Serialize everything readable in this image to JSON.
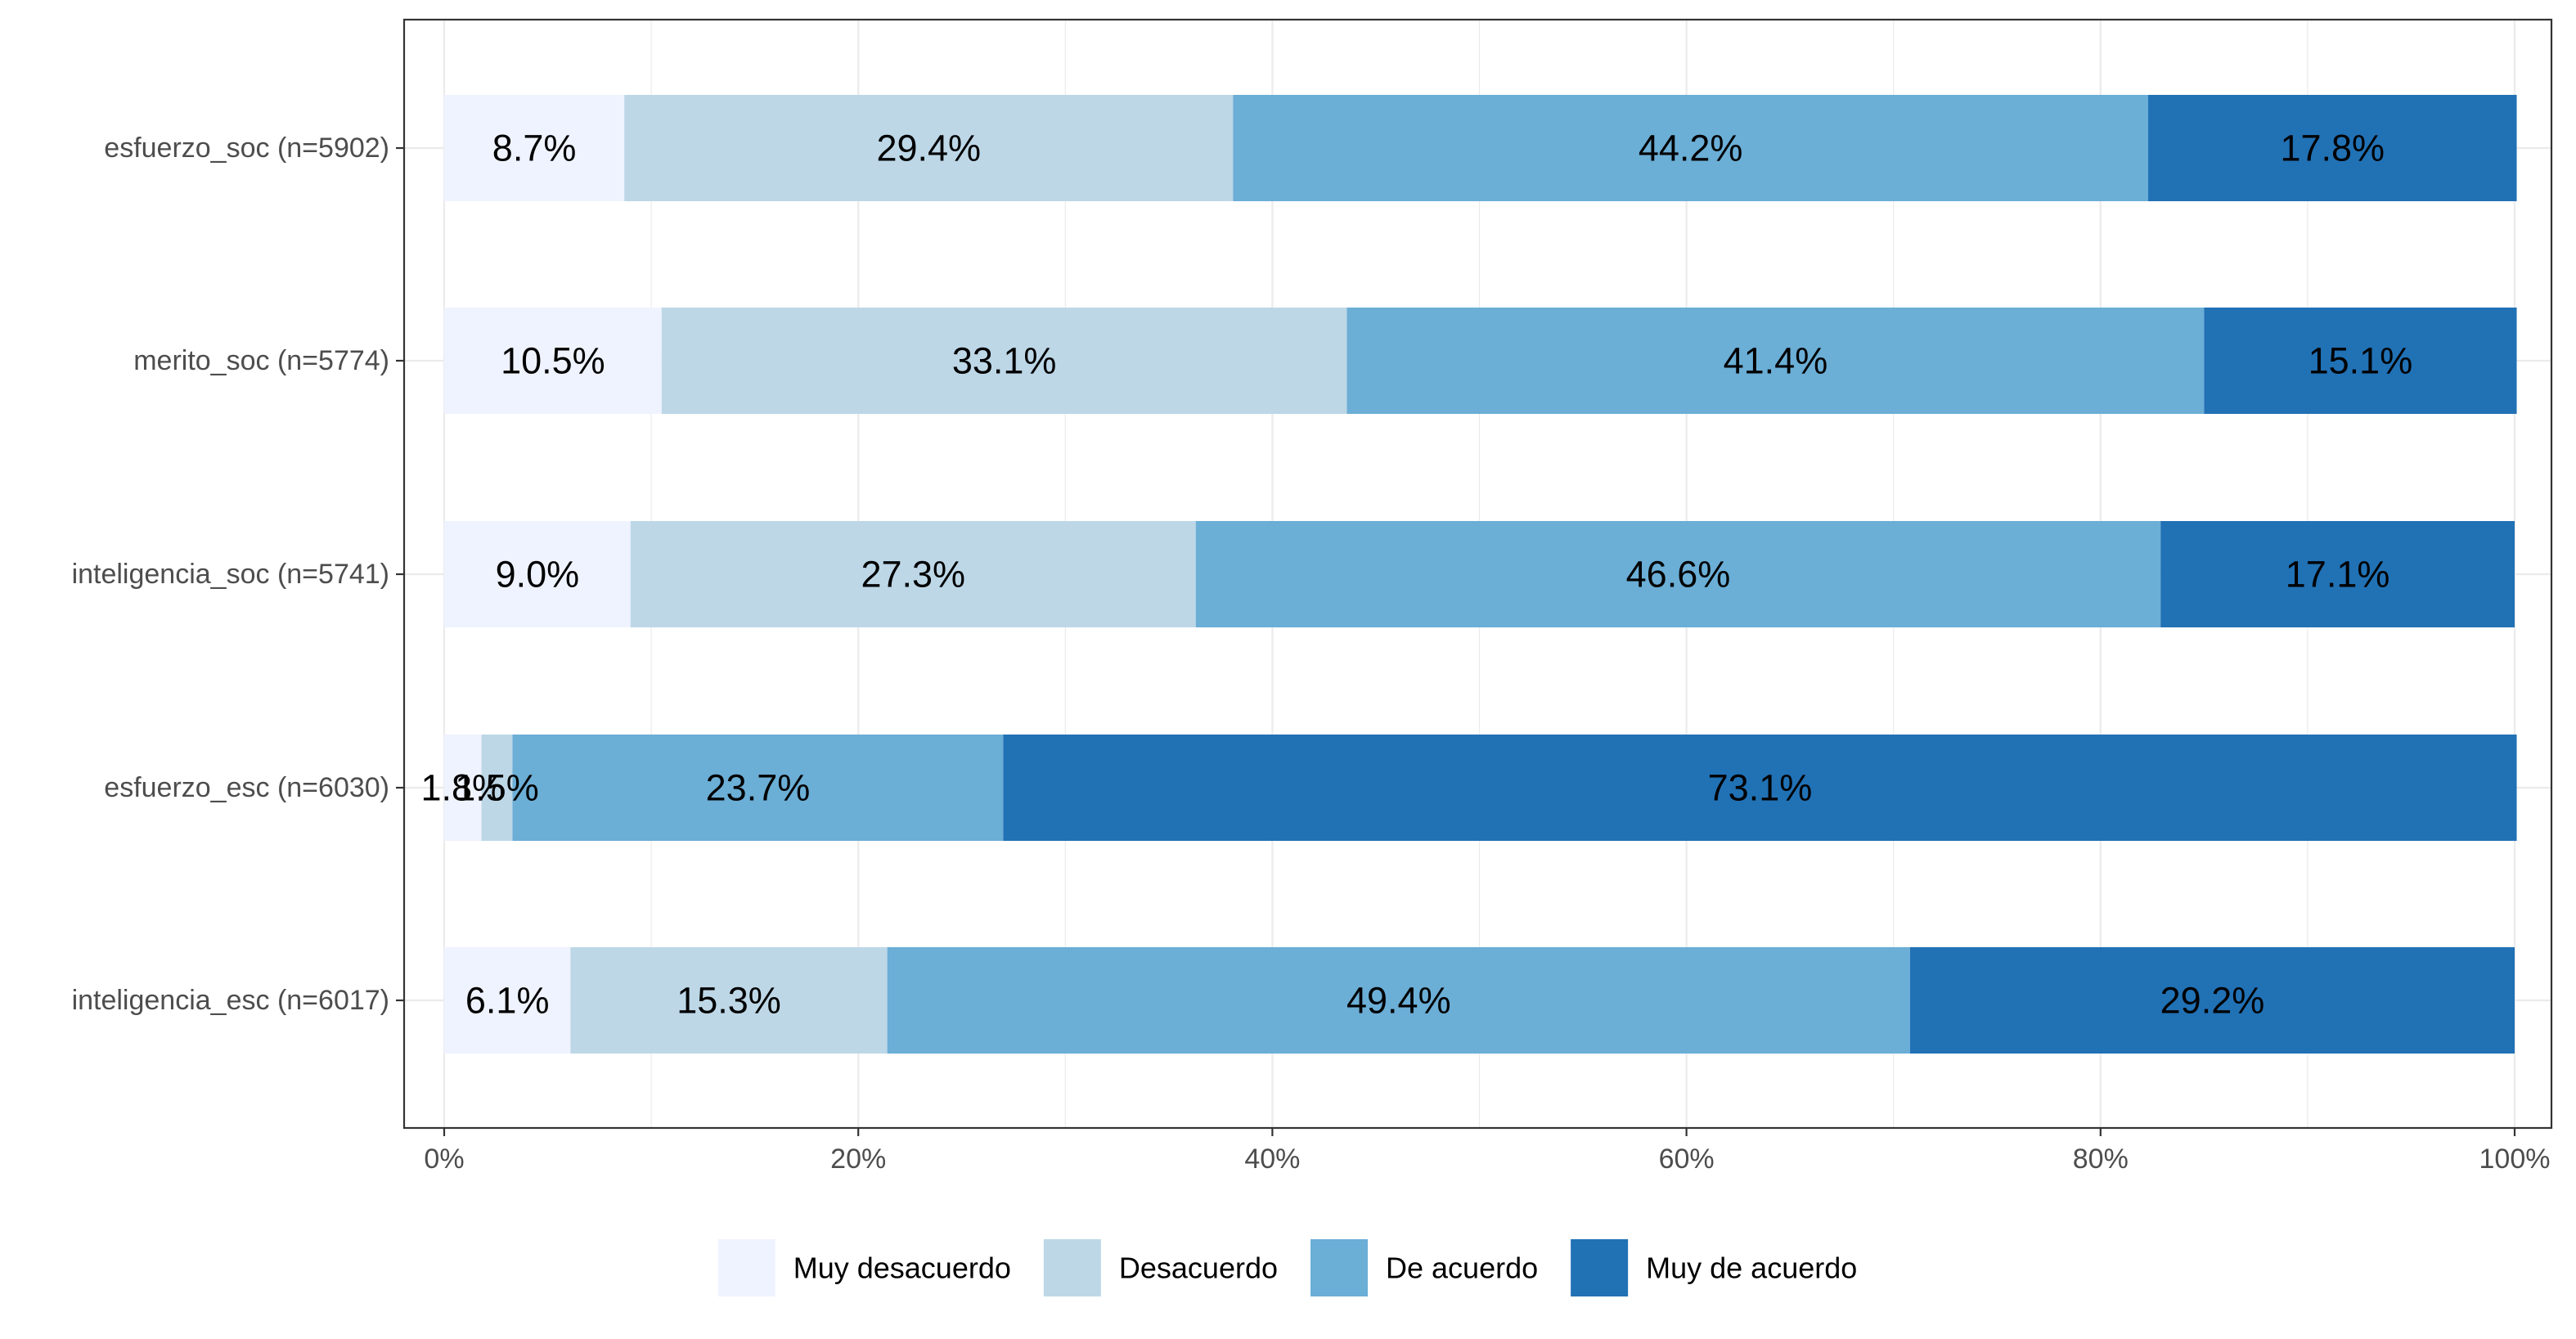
{
  "chart_data": {
    "type": "bar",
    "orientation": "horizontal",
    "stacked": true,
    "categories": [
      "esfuerzo_soc (n=5902)",
      "merito_soc (n=5774)",
      "inteligencia_soc (n=5741)",
      "esfuerzo_esc (n=6030)",
      "inteligencia_esc (n=6017)"
    ],
    "series": [
      {
        "name": "Muy desacuerdo",
        "color": "#eff3ff",
        "values": [
          8.7,
          10.5,
          9.0,
          1.8,
          6.1
        ],
        "labels": [
          "8.7%",
          "10.5%",
          "9.0%",
          "1.8%",
          "6.1%"
        ]
      },
      {
        "name": "Desacuerdo",
        "color": "#bdd7e7",
        "values": [
          29.4,
          33.1,
          27.3,
          1.5,
          15.3
        ],
        "labels": [
          "29.4%",
          "33.1%",
          "27.3%",
          "1.5%",
          "15.3%"
        ]
      },
      {
        "name": "De acuerdo",
        "color": "#6baed6",
        "values": [
          44.2,
          41.4,
          46.6,
          23.7,
          49.4
        ],
        "labels": [
          "44.2%",
          "41.4%",
          "46.6%",
          "23.7%",
          "49.4%"
        ]
      },
      {
        "name": "Muy de acuerdo",
        "color": "#2171b5",
        "values": [
          17.8,
          15.1,
          17.1,
          73.1,
          29.2
        ],
        "labels": [
          "17.8%",
          "15.1%",
          "17.1%",
          "73.1%",
          "29.2%"
        ]
      }
    ],
    "x_ticks": [
      "0%",
      "20%",
      "40%",
      "60%",
      "80%",
      "100%"
    ],
    "xlim": [
      0,
      100
    ],
    "title": "",
    "xlabel": "",
    "ylabel": "",
    "grid": true,
    "legend_position": "bottom"
  }
}
